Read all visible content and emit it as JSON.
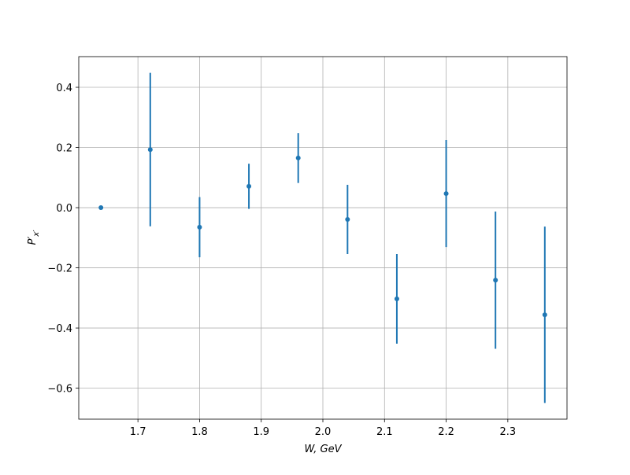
{
  "chart_data": {
    "type": "errorbar",
    "xlabel": "W, GeV",
    "ylabel": {
      "base": "P′",
      "sub": "x′"
    },
    "x": [
      1.64,
      1.72,
      1.8,
      1.88,
      1.96,
      2.04,
      2.12,
      2.2,
      2.28,
      2.36
    ],
    "series": [
      {
        "color": "#1f77b4",
        "values": [
          0,
          0.193,
          -0.065,
          0.071,
          0.165,
          -0.039,
          -0.303,
          0.047,
          -0.241,
          -0.356
        ],
        "errors": [
          0,
          0.255,
          0.1,
          0.075,
          0.083,
          0.115,
          0.149,
          0.178,
          0.228,
          0.293
        ]
      }
    ],
    "xlim": [
      1.604,
      2.396
    ],
    "ylim": [
      -0.703,
      0.502
    ],
    "xticks": [
      1.7,
      1.8,
      1.9,
      {
        "value": 2.0,
        "label": "2.0"
      },
      2.1,
      2.2,
      2.3
    ],
    "yticks": [
      {
        "value": -0.6,
        "label": "−0.6"
      },
      {
        "value": -0.4,
        "label": "−0.4"
      },
      {
        "value": -0.2,
        "label": "−0.2"
      },
      {
        "value": 0,
        "label": "0.0"
      },
      0.2,
      0.4
    ],
    "grid": true
  }
}
